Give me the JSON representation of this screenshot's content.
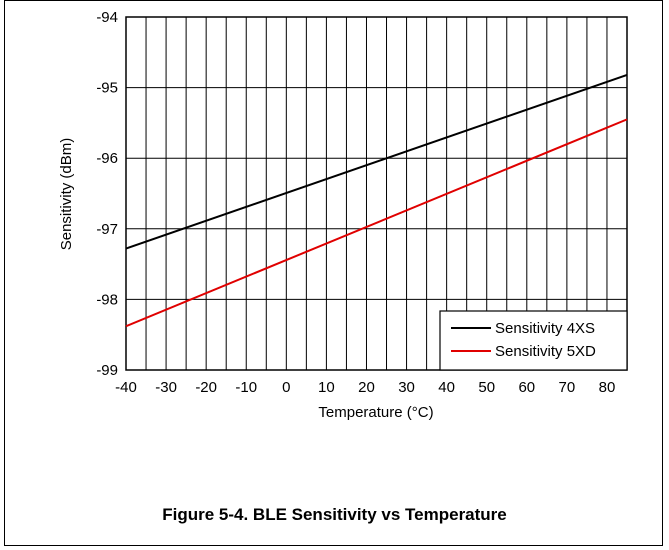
{
  "caption": "Figure 5-4. BLE Sensitivity vs Temperature",
  "chart_data": {
    "type": "line",
    "xlabel": "Temperature (°C)",
    "ylabel": "Sensitivity (dBm)",
    "xlim": [
      -40,
      85
    ],
    "ylim": [
      -99,
      -94
    ],
    "xticks": [
      "-40",
      "-30",
      "-20",
      "-10",
      "0",
      "10",
      "20",
      "30",
      "40",
      "50",
      "60",
      "70",
      "80"
    ],
    "yticks": [
      "-94",
      "-95",
      "-96",
      "-97",
      "-98",
      "-99"
    ],
    "grid": true,
    "legend_position": "bottom-right",
    "series": [
      {
        "name": "Sensitivity 4XS",
        "color": "#000000",
        "x": [
          -40,
          85
        ],
        "y": [
          -97.28,
          -94.82
        ]
      },
      {
        "name": "Sensitivity 5XD",
        "color": "#e00000",
        "x": [
          -40,
          85
        ],
        "y": [
          -98.38,
          -95.45
        ]
      }
    ]
  }
}
